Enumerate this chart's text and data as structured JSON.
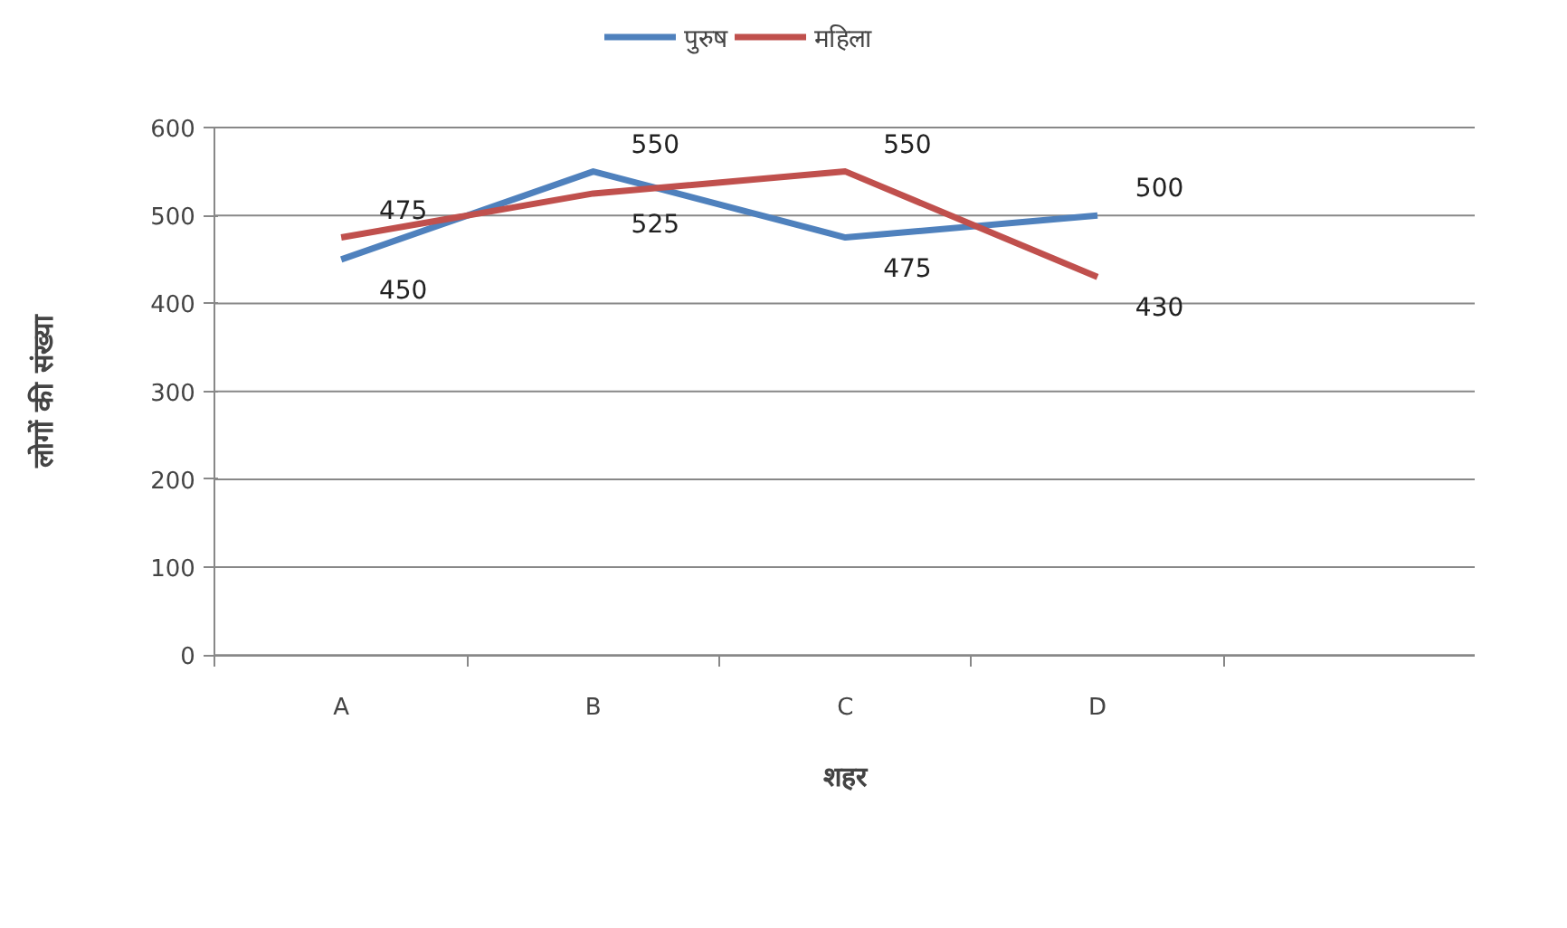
{
  "chart_data": {
    "type": "line",
    "xlabel": "शहर",
    "ylabel": "लोगों की संख्या",
    "categories": [
      "A",
      "B",
      "C",
      "D",
      null
    ],
    "series": [
      {
        "name": "पुरुष",
        "color": "#4f81bd",
        "values": [
          450,
          550,
          475,
          500,
          null
        ]
      },
      {
        "name": "महिला",
        "color": "#c0504d",
        "values": [
          475,
          525,
          550,
          430,
          null
        ]
      }
    ],
    "ylim": [
      0,
      600
    ],
    "yticks": [
      0,
      100,
      200,
      300,
      400,
      500,
      600
    ],
    "grid": "y",
    "legend": "top",
    "data_labels": true,
    "marker": "none",
    "line_style": "solid"
  }
}
